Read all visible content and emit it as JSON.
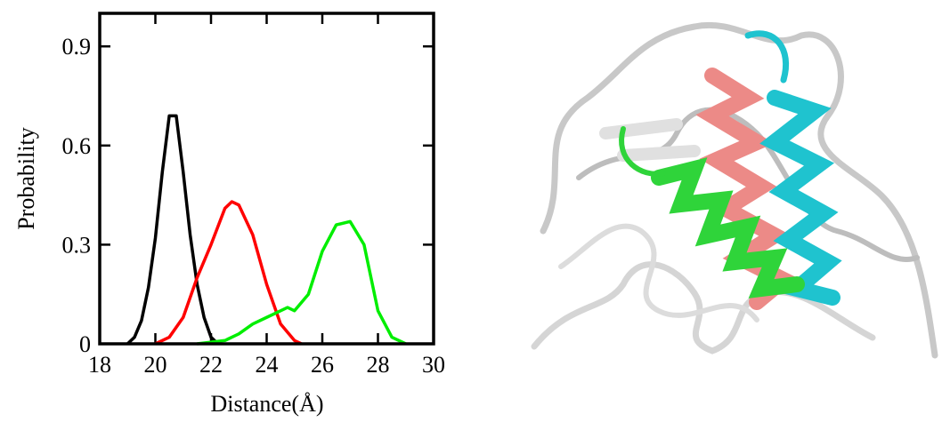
{
  "chart_data": {
    "type": "line",
    "xlabel": "Distance(Å)",
    "ylabel": "Probability",
    "xlim": [
      18,
      30
    ],
    "xticks": [
      18,
      20,
      22,
      24,
      26,
      28,
      30
    ],
    "ylim": [
      0,
      1
    ],
    "yticks": [
      0,
      0.3,
      0.6,
      0.9
    ],
    "series": [
      {
        "color": "#000000",
        "x": [
          19.0,
          19.25,
          19.5,
          19.75,
          20.0,
          20.25,
          20.5,
          20.75,
          21.0,
          21.25,
          21.5,
          21.75,
          22.0,
          22.25
        ],
        "values": [
          0,
          0.02,
          0.07,
          0.17,
          0.32,
          0.52,
          0.69,
          0.69,
          0.52,
          0.33,
          0.18,
          0.08,
          0.02,
          0
        ]
      },
      {
        "color": "#ff0000",
        "x": [
          20.0,
          20.5,
          21.0,
          21.5,
          22.0,
          22.5,
          22.75,
          23.0,
          23.5,
          24.0,
          24.5,
          25.0,
          25.25
        ],
        "values": [
          0,
          0.02,
          0.08,
          0.2,
          0.3,
          0.41,
          0.43,
          0.42,
          0.33,
          0.18,
          0.06,
          0.01,
          0
        ]
      },
      {
        "color": "#00ee00",
        "x": [
          21.5,
          22.5,
          23.0,
          23.5,
          24.0,
          24.5,
          24.75,
          25.0,
          25.5,
          26.0,
          26.5,
          27.0,
          27.5,
          28.0,
          28.5,
          29.0
        ],
        "values": [
          0,
          0.01,
          0.03,
          0.06,
          0.08,
          0.1,
          0.11,
          0.1,
          0.15,
          0.28,
          0.36,
          0.37,
          0.3,
          0.1,
          0.02,
          0
        ]
      }
    ]
  }
}
